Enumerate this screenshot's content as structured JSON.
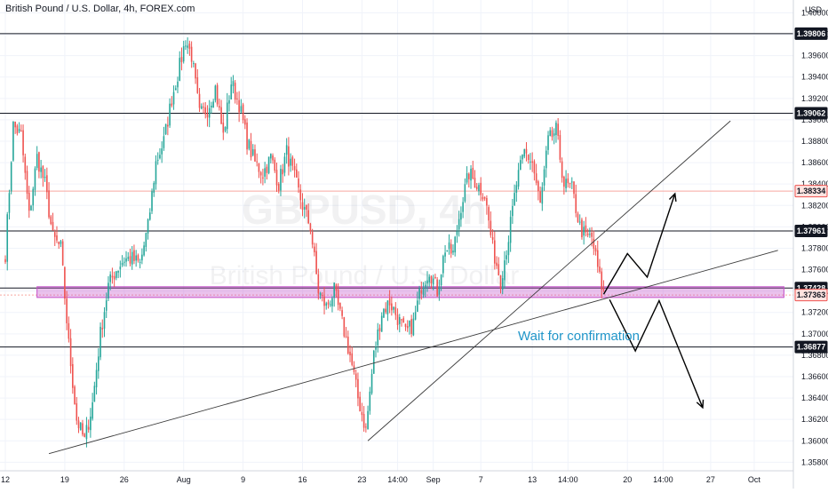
{
  "header": {
    "title": "British Pound / U.S. Dollar, 4h, FOREX.com",
    "currency_label": "USD"
  },
  "watermark": {
    "symbol": "GBPUSD, 4h",
    "description": "British Pound / U.S. Dollar"
  },
  "annotation": {
    "text": "Wait for confirmation",
    "color": "#2196c9"
  },
  "colors": {
    "up": "#26a69a",
    "down": "#ef5350",
    "zone": "#c44dc8",
    "grid": "#f0f3fa"
  },
  "chart_data": {
    "type": "candlestick",
    "title": "British Pound / U.S. Dollar, 4h, FOREX.com",
    "y_unit": "USD",
    "ylim": [
      1.3572,
      1.4012
    ],
    "y_ticks": [
      1.358,
      1.36,
      1.362,
      1.364,
      1.366,
      1.368,
      1.37,
      1.372,
      1.374,
      1.376,
      1.378,
      1.38,
      1.382,
      1.384,
      1.386,
      1.388,
      1.39,
      1.392,
      1.394,
      1.396,
      1.398,
      1.4
    ],
    "y_tick_labels": [
      "1.35800",
      "1.36000",
      "1.36200",
      "1.36400",
      "1.36600",
      "1.36800",
      "1.37000",
      "1.37200",
      "1.37400",
      "1.37600",
      "1.37800",
      "1.38000",
      "1.38200",
      "1.38400",
      "1.38600",
      "1.38800",
      "1.39000",
      "1.39200",
      "1.39400",
      "1.39600",
      "1.39800",
      "1.40000"
    ],
    "x_ticks": [
      {
        "label": "12",
        "bar": 0
      },
      {
        "label": "19",
        "bar": 30
      },
      {
        "label": "26",
        "bar": 60
      },
      {
        "label": "Aug",
        "bar": 90
      },
      {
        "label": "9",
        "bar": 120
      },
      {
        "label": "16",
        "bar": 150
      },
      {
        "label": "23",
        "bar": 180
      },
      {
        "label": "14:00",
        "bar": 198
      },
      {
        "label": "Sep",
        "bar": 216
      },
      {
        "label": "7",
        "bar": 240
      },
      {
        "label": "13",
        "bar": 266
      },
      {
        "label": "14:00",
        "bar": 284
      },
      {
        "label": "20",
        "bar": 314
      },
      {
        "label": "14:00",
        "bar": 332
      },
      {
        "label": "27",
        "bar": 356
      },
      {
        "label": "Oct",
        "bar": 378
      }
    ],
    "waypoints": [
      [
        0,
        1.3775
      ],
      [
        4,
        1.3895
      ],
      [
        8,
        1.3885
      ],
      [
        12,
        1.381
      ],
      [
        16,
        1.3865
      ],
      [
        20,
        1.384
      ],
      [
        24,
        1.379
      ],
      [
        28,
        1.378
      ],
      [
        32,
        1.369
      ],
      [
        36,
        1.362
      ],
      [
        40,
        1.36
      ],
      [
        44,
        1.3635
      ],
      [
        48,
        1.37
      ],
      [
        52,
        1.3745
      ],
      [
        56,
        1.376
      ],
      [
        60,
        1.377
      ],
      [
        64,
        1.377
      ],
      [
        68,
        1.3765
      ],
      [
        72,
        1.38
      ],
      [
        76,
        1.386
      ],
      [
        80,
        1.388
      ],
      [
        84,
        1.392
      ],
      [
        88,
        1.395
      ],
      [
        91,
        1.3975
      ],
      [
        94,
        1.396
      ],
      [
        98,
        1.3905
      ],
      [
        102,
        1.391
      ],
      [
        106,
        1.393
      ],
      [
        110,
        1.3885
      ],
      [
        114,
        1.3935
      ],
      [
        118,
        1.3915
      ],
      [
        122,
        1.388
      ],
      [
        126,
        1.386
      ],
      [
        130,
        1.385
      ],
      [
        134,
        1.3865
      ],
      [
        138,
        1.384
      ],
      [
        142,
        1.387
      ],
      [
        146,
        1.3845
      ],
      [
        150,
        1.382
      ],
      [
        154,
        1.38
      ],
      [
        158,
        1.374
      ],
      [
        162,
        1.3725
      ],
      [
        166,
        1.374
      ],
      [
        170,
        1.371
      ],
      [
        174,
        1.368
      ],
      [
        178,
        1.364
      ],
      [
        182,
        1.361
      ],
      [
        186,
        1.368
      ],
      [
        190,
        1.372
      ],
      [
        194,
        1.373
      ],
      [
        198,
        1.3715
      ],
      [
        202,
        1.37
      ],
      [
        206,
        1.371
      ],
      [
        210,
        1.3745
      ],
      [
        214,
        1.376
      ],
      [
        218,
        1.374
      ],
      [
        222,
        1.378
      ],
      [
        226,
        1.3775
      ],
      [
        230,
        1.382
      ],
      [
        234,
        1.385
      ],
      [
        238,
        1.384
      ],
      [
        242,
        1.383
      ],
      [
        246,
        1.378
      ],
      [
        250,
        1.375
      ],
      [
        254,
        1.379
      ],
      [
        258,
        1.384
      ],
      [
        262,
        1.387
      ],
      [
        266,
        1.386
      ],
      [
        270,
        1.382
      ],
      [
        274,
        1.388
      ],
      [
        278,
        1.389
      ],
      [
        282,
        1.384
      ],
      [
        286,
        1.3835
      ],
      [
        290,
        1.38
      ],
      [
        293,
        1.379
      ],
      [
        296,
        1.379
      ],
      [
        300,
        1.3752
      ],
      [
        302,
        1.3738
      ]
    ],
    "horizontal_levels": [
      {
        "price": 1.39806,
        "label": "1.39806",
        "tag": "dark"
      },
      {
        "price": 1.39062,
        "label": "1.39062",
        "tag": "dark"
      },
      {
        "price": 1.38334,
        "label": "1.38334",
        "tag": "red-outline"
      },
      {
        "price": 1.37961,
        "label": "1.37961",
        "tag": "dark"
      },
      {
        "price": 1.37428,
        "label": "1.37428",
        "tag": "dark"
      },
      {
        "price": 1.37363,
        "label": "1.37363",
        "tag": "red-outline"
      },
      {
        "price": 1.36877,
        "label": "1.36877",
        "tag": "dark"
      }
    ],
    "zone": {
      "from_bar": 16,
      "to_bar": 393,
      "price_low": 1.3734,
      "price_high": 1.3744
    },
    "trendlines": [
      {
        "from": [
          22,
          1.3588
        ],
        "to": [
          390,
          1.3778
        ]
      },
      {
        "from": [
          183,
          1.36
        ],
        "to": [
          366,
          1.3899
        ]
      }
    ],
    "scenario_paths": [
      [
        [
          302,
          1.3737
        ],
        [
          314,
          1.3775
        ],
        [
          324,
          1.3753
        ],
        [
          338,
          1.3831
        ]
      ],
      [
        [
          305,
          1.3732
        ],
        [
          318,
          1.3684
        ],
        [
          330,
          1.3731
        ],
        [
          352,
          1.3631
        ]
      ]
    ],
    "visible_bars": 303,
    "total_bars": 393
  }
}
